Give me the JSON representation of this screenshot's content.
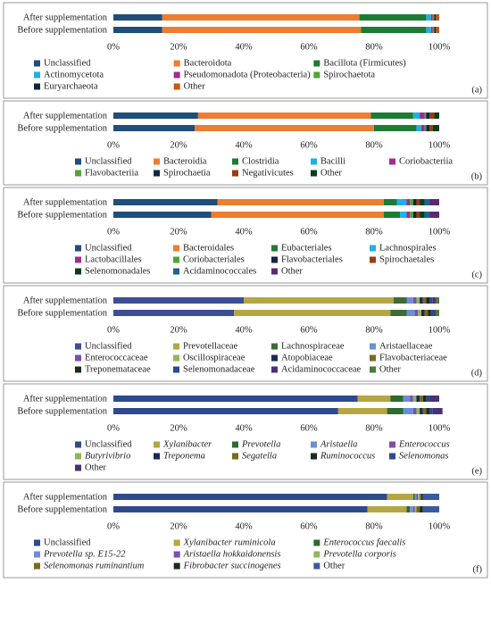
{
  "chart_data": [
    {
      "type": "bar",
      "orientation": "horizontal",
      "stacked": true,
      "label": "(a)",
      "categories": [
        "After supplementation",
        "Before supplementation"
      ],
      "xlim": [
        0,
        100
      ],
      "xticks": [
        {
          "value": 0,
          "label": "0%"
        },
        {
          "value": 20,
          "label": "20%"
        },
        {
          "value": 40,
          "label": "40%"
        },
        {
          "value": 60,
          "label": "60%"
        },
        {
          "value": 80,
          "label": "80%"
        },
        {
          "value": 100,
          "label": "100%"
        }
      ],
      "series": [
        {
          "name": "Unclassified",
          "color": "#1f4e79",
          "values": [
            15,
            15
          ]
        },
        {
          "name": "Bacteroidota",
          "color": "#ed7d31",
          "values": [
            60.5,
            61
          ]
        },
        {
          "name": "Bacillota (Firmicutes)",
          "color": "#1e7b34",
          "values": [
            20.5,
            20
          ]
        },
        {
          "name": "Actinomycetota",
          "color": "#1fb1e6",
          "values": [
            1.5,
            1.5
          ]
        },
        {
          "name": "Pseudomonadota (Proteobacteria)",
          "color": "#a02b93",
          "values": [
            0.5,
            0.5
          ]
        },
        {
          "name": "Spirochaetota",
          "color": "#4ea72e",
          "values": [
            0.5,
            0.5
          ]
        },
        {
          "name": "Euryarchaeota",
          "color": "#0e2841",
          "values": [
            0.5,
            0.5
          ]
        },
        {
          "name": "Other",
          "color": "#c55a11",
          "values": [
            1,
            1
          ]
        }
      ]
    },
    {
      "type": "bar",
      "orientation": "horizontal",
      "stacked": true,
      "label": "(b)",
      "categories": [
        "After supplementation",
        "Before supplementation"
      ],
      "xlim": [
        0,
        100
      ],
      "xticks": [
        {
          "value": 0,
          "label": "0%"
        },
        {
          "value": 20,
          "label": "20%"
        },
        {
          "value": 40,
          "label": "40%"
        },
        {
          "value": 60,
          "label": "60%"
        },
        {
          "value": 80,
          "label": "80%"
        },
        {
          "value": 100,
          "label": "100%"
        }
      ],
      "series": [
        {
          "name": "Unclassified",
          "color": "#1f4e79",
          "values": [
            26,
            25
          ]
        },
        {
          "name": "Bacteroidia",
          "color": "#ed7d31",
          "values": [
            53,
            55
          ]
        },
        {
          "name": "Clostridia",
          "color": "#1e7b34",
          "values": [
            13,
            13
          ]
        },
        {
          "name": "Bacilli",
          "color": "#1fb1e6",
          "values": [
            2,
            1.5
          ]
        },
        {
          "name": "Coriobacteriia",
          "color": "#a02b93",
          "values": [
            1.5,
            1
          ]
        },
        {
          "name": "Flavobacteriia",
          "color": "#4ea72e",
          "values": [
            0.5,
            0.5
          ]
        },
        {
          "name": "Spirochaetia",
          "color": "#0e2841",
          "values": [
            1,
            1
          ]
        },
        {
          "name": "Negativicutes",
          "color": "#9c3a0f",
          "values": [
            1.5,
            1
          ]
        },
        {
          "name": "Other",
          "color": "#0b3d1a",
          "values": [
            1.5,
            2
          ]
        }
      ]
    },
    {
      "type": "bar",
      "orientation": "horizontal",
      "stacked": true,
      "label": "(c)",
      "categories": [
        "After supplementation",
        "Before supplementation"
      ],
      "xlim": [
        0,
        100
      ],
      "xticks": [
        {
          "value": 0,
          "label": "0%"
        },
        {
          "value": 20,
          "label": "20%"
        },
        {
          "value": 40,
          "label": "40%"
        },
        {
          "value": 60,
          "label": "60%"
        },
        {
          "value": 80,
          "label": "80%"
        },
        {
          "value": 100,
          "label": "100%"
        }
      ],
      "series": [
        {
          "name": "Unclassified",
          "color": "#1f4e79",
          "values": [
            32,
            30
          ]
        },
        {
          "name": "Bacteroidales",
          "color": "#ed7d31",
          "values": [
            51,
            53
          ]
        },
        {
          "name": "Eubacteriales",
          "color": "#1e7b34",
          "values": [
            4,
            5
          ]
        },
        {
          "name": "Lachnospirales",
          "color": "#1fb1e6",
          "values": [
            3,
            2
          ]
        },
        {
          "name": "Lactobacillales",
          "color": "#a02b93",
          "values": [
            1,
            1
          ]
        },
        {
          "name": "Coriobacteriales",
          "color": "#4ea72e",
          "values": [
            1,
            1
          ]
        },
        {
          "name": "Flavobacteriales",
          "color": "#0e2841",
          "values": [
            1,
            1
          ]
        },
        {
          "name": "Spirochaetales",
          "color": "#9c3a0f",
          "values": [
            1,
            1
          ]
        },
        {
          "name": "Selenomonadales",
          "color": "#0b3d1a",
          "values": [
            1.5,
            1.5
          ]
        },
        {
          "name": "Acidaminococcales",
          "color": "#1f6391",
          "values": [
            1.5,
            1.5
          ]
        },
        {
          "name": "Other",
          "color": "#5b2a6e",
          "values": [
            3,
            3
          ]
        }
      ]
    },
    {
      "type": "bar",
      "orientation": "horizontal",
      "stacked": true,
      "label": "(d)",
      "categories": [
        "After supplementation",
        "Before supplementation"
      ],
      "xlim": [
        0,
        100
      ],
      "xticks": [
        {
          "value": 0,
          "label": "0%"
        },
        {
          "value": 20,
          "label": "20%"
        },
        {
          "value": 40,
          "label": "40%"
        },
        {
          "value": 60,
          "label": "60%"
        },
        {
          "value": 80,
          "label": "80%"
        },
        {
          "value": 100,
          "label": "100%"
        }
      ],
      "series": [
        {
          "name": "Unclassified",
          "color": "#3a4f96",
          "values": [
            40,
            37
          ]
        },
        {
          "name": "Prevotellaceae",
          "color": "#b5a642",
          "values": [
            46,
            48
          ]
        },
        {
          "name": "Lachnospiraceae",
          "color": "#3e6b35",
          "values": [
            4,
            5
          ]
        },
        {
          "name": "Aristaellaceae",
          "color": "#6b8fd6",
          "values": [
            2,
            2.5
          ]
        },
        {
          "name": "Enterococcaceae",
          "color": "#7a4fb0",
          "values": [
            1,
            1
          ]
        },
        {
          "name": "Oscillospiraceae",
          "color": "#8fb85a",
          "values": [
            1,
            1
          ]
        },
        {
          "name": "Atopobiaceae",
          "color": "#1c2a52",
          "values": [
            1,
            1
          ]
        },
        {
          "name": "Flavobacteriaceae",
          "color": "#7a6a1f",
          "values": [
            1,
            1
          ]
        },
        {
          "name": "Treponemataceae",
          "color": "#1a2d1a",
          "values": [
            1,
            1
          ]
        },
        {
          "name": "Selenomonadaceae",
          "color": "#2e4a8c",
          "values": [
            1,
            1
          ]
        },
        {
          "name": "Acidaminococcaceae",
          "color": "#4a2f7a",
          "values": [
            1,
            0.5
          ]
        },
        {
          "name": "Other",
          "color": "#4c7a3a",
          "values": [
            1,
            1
          ]
        }
      ]
    },
    {
      "type": "bar",
      "orientation": "horizontal",
      "stacked": true,
      "label": "(e)",
      "categories": [
        "After supplementation",
        "Before supplementation"
      ],
      "xlim": [
        0,
        100
      ],
      "xticks": [
        {
          "value": 0,
          "label": "0%"
        },
        {
          "value": 20,
          "label": "20%"
        },
        {
          "value": 40,
          "label": "40%"
        },
        {
          "value": 60,
          "label": "60%"
        },
        {
          "value": 80,
          "label": "80%"
        },
        {
          "value": 100,
          "label": "100%"
        }
      ],
      "series": [
        {
          "name": "Unclassified",
          "color": "#2e4a8c",
          "values": [
            75,
            69
          ]
        },
        {
          "name": "Xylanibacter",
          "color": "#b5a642",
          "values": [
            10,
            15
          ]
        },
        {
          "name": "Prevotella",
          "color": "#2e6b30",
          "values": [
            4,
            5
          ]
        },
        {
          "name": "Aristaella",
          "color": "#6b8fd6",
          "values": [
            2,
            3
          ]
        },
        {
          "name": "Enterococcus",
          "color": "#7a4fb0",
          "values": [
            1,
            1
          ]
        },
        {
          "name": "Butyrivibrio",
          "color": "#8fb85a",
          "values": [
            1,
            1
          ]
        },
        {
          "name": "Treponema",
          "color": "#1c2a52",
          "values": [
            1,
            1
          ]
        },
        {
          "name": "Segatella",
          "color": "#7a6a1f",
          "values": [
            1,
            1
          ]
        },
        {
          "name": "Ruminococcus",
          "color": "#1a2d1a",
          "values": [
            1,
            1
          ]
        },
        {
          "name": "Selenomonas",
          "color": "#2e4a8c",
          "values": [
            1,
            1
          ]
        },
        {
          "name": "Other",
          "color": "#4a2f7a",
          "values": [
            3,
            3
          ]
        }
      ]
    },
    {
      "type": "bar",
      "orientation": "horizontal",
      "stacked": true,
      "label": "(f)",
      "categories": [
        "After supplementation",
        "Before supplementation"
      ],
      "xlim": [
        0,
        100
      ],
      "xticks": [
        {
          "value": 0,
          "label": "0%"
        },
        {
          "value": 20,
          "label": "20%"
        },
        {
          "value": 40,
          "label": "40%"
        },
        {
          "value": 60,
          "label": "60%"
        },
        {
          "value": 80,
          "label": "80%"
        },
        {
          "value": 100,
          "label": "100%"
        }
      ],
      "series": [
        {
          "name": "Unclassified",
          "color": "#2e4a8c",
          "values": [
            84,
            78
          ]
        },
        {
          "name": "Xylanibacter ruminicola",
          "color": "#b5a642",
          "values": [
            8,
            12
          ]
        },
        {
          "name": "Enterococcus faecalis",
          "color": "#2e6b30",
          "values": [
            0.5,
            1
          ]
        },
        {
          "name": "Prevotella sp. E15-22",
          "color": "#6b8fd6",
          "values": [
            0.5,
            1
          ]
        },
        {
          "name": "Aristaella hokkaidonensis",
          "color": "#7a4fb0",
          "values": [
            0.5,
            0.5
          ]
        },
        {
          "name": "Prevotella corporis",
          "color": "#8fb85a",
          "values": [
            0.5,
            0.5
          ]
        },
        {
          "name": "Selenomonas ruminantium",
          "color": "#7a6a1f",
          "values": [
            0.5,
            1
          ]
        },
        {
          "name": "Fibrobacter succinogenes",
          "color": "#1a2d1a",
          "values": [
            0.5,
            1
          ]
        },
        {
          "name": "Other",
          "color": "#3a5aa0",
          "values": [
            5,
            5
          ]
        }
      ]
    }
  ]
}
